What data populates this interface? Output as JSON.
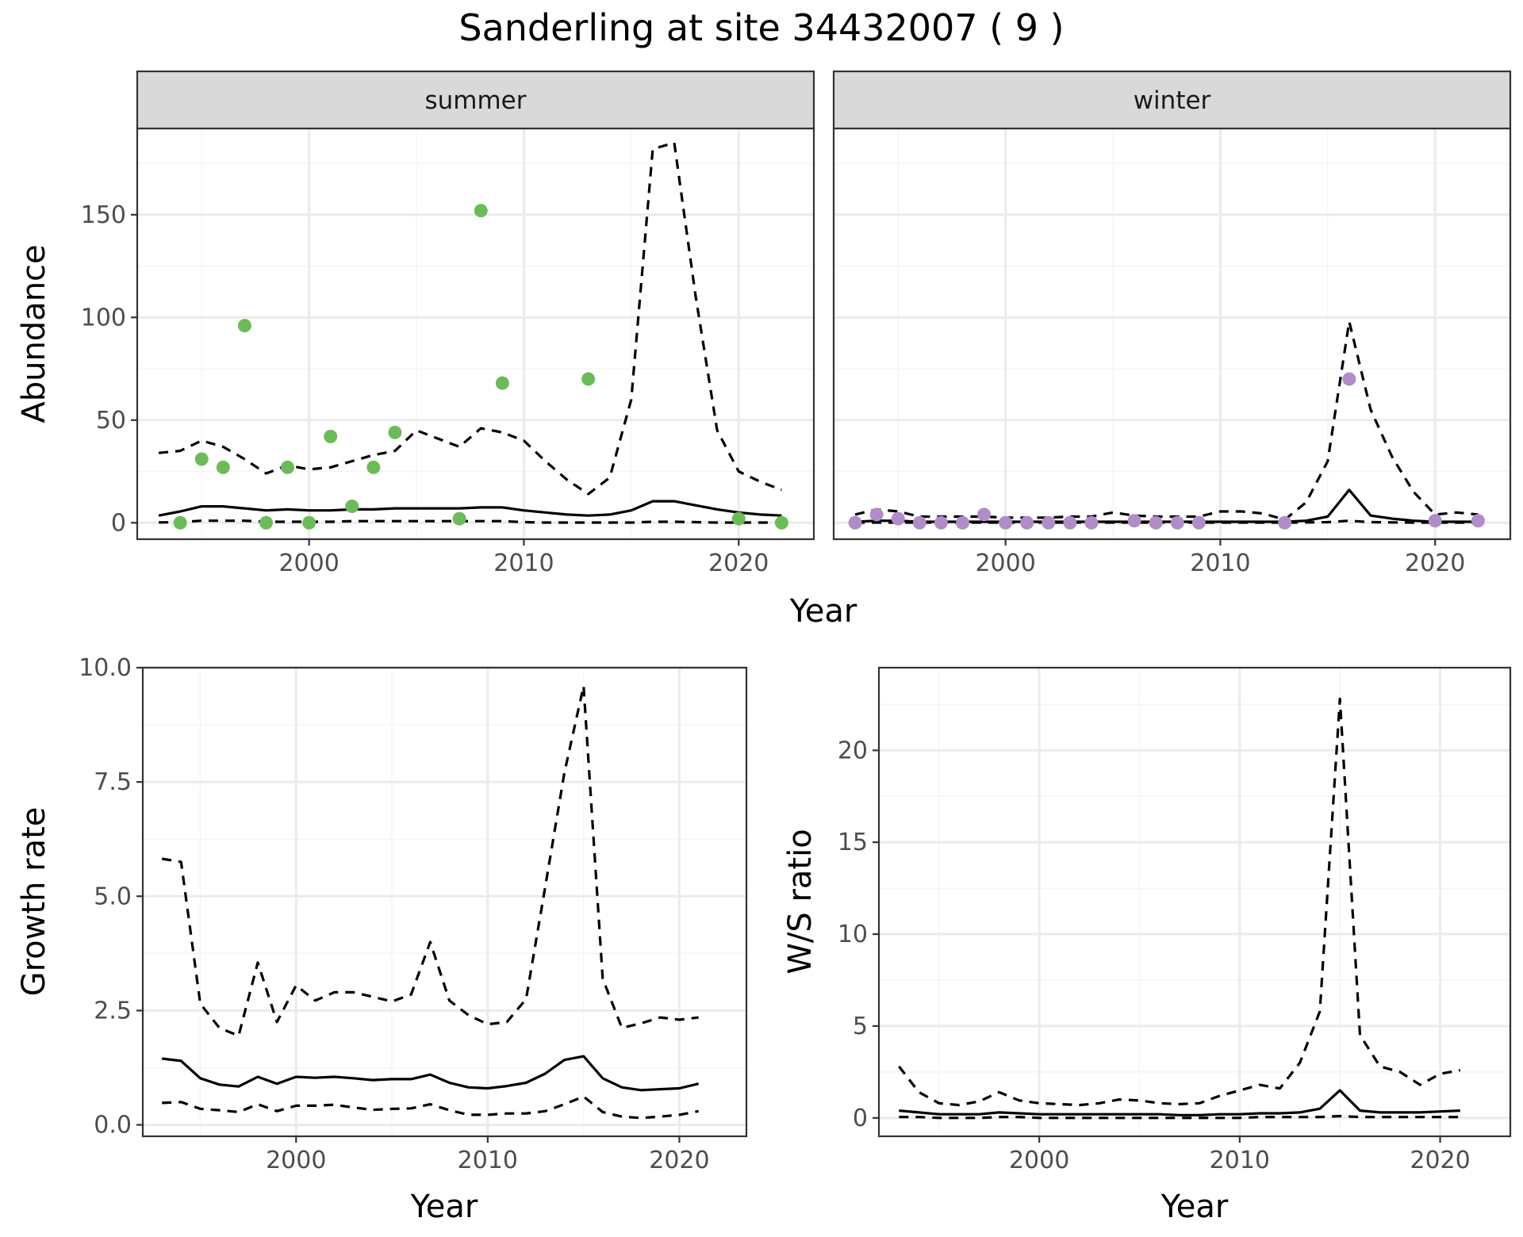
{
  "title": "Sanderling at site 34432007 ( 9 )",
  "colors": {
    "summer": "#6ABD56",
    "winter": "#B08CC8",
    "strip_bg": "#D9D9D9",
    "grid_major": "#EBEBEB",
    "grid_minor": "#F5F5F5",
    "line": "#000000"
  },
  "chart_data": [
    {
      "type": "scatter",
      "facet": "summer",
      "xlabel": "Year",
      "ylabel": "Abundance",
      "xlim": [
        1992,
        2023.5
      ],
      "ylim": [
        -8,
        192
      ],
      "xticks": [
        2000,
        2010,
        2020
      ],
      "yticks": [
        0,
        50,
        100,
        150
      ],
      "points": {
        "x": [
          1994,
          1995,
          1996,
          1997,
          1998,
          1999,
          2000,
          2001,
          2002,
          2003,
          2004,
          2007,
          2008,
          2009,
          2013,
          2020,
          2022
        ],
        "y": [
          0,
          31,
          27,
          96,
          0,
          27,
          0,
          42,
          8,
          27,
          44,
          2,
          152,
          68,
          70,
          2,
          0
        ]
      },
      "lines": [
        {
          "role": "median",
          "style": "solid",
          "x": [
            1993,
            1994,
            1995,
            1996,
            1997,
            1998,
            1999,
            2000,
            2001,
            2002,
            2003,
            2004,
            2005,
            2006,
            2007,
            2008,
            2009,
            2010,
            2011,
            2012,
            2013,
            2014,
            2015,
            2016,
            2017,
            2018,
            2019,
            2020,
            2021,
            2022
          ],
          "y": [
            3.5,
            5.5,
            8,
            8,
            7,
            6,
            6.5,
            6,
            6,
            6.5,
            6.5,
            7,
            7,
            7,
            7,
            7.5,
            7.5,
            6,
            5,
            4,
            3.5,
            4,
            6,
            10.5,
            10.5,
            8.5,
            6.5,
            5,
            4,
            3.5
          ]
        },
        {
          "role": "upper",
          "style": "dashed",
          "x": [
            1993,
            1994,
            1995,
            1996,
            1997,
            1998,
            1999,
            2000,
            2001,
            2002,
            2003,
            2004,
            2005,
            2006,
            2007,
            2008,
            2009,
            2010,
            2011,
            2012,
            2013,
            2014,
            2015,
            2016,
            2017,
            2018,
            2019,
            2020,
            2021,
            2022
          ],
          "y": [
            34,
            35,
            40,
            37,
            31,
            24,
            28,
            26,
            27,
            30,
            33,
            35,
            45,
            41,
            37,
            46,
            44,
            40,
            30,
            21,
            14,
            22,
            60,
            182,
            185,
            110,
            45,
            25,
            20,
            16
          ]
        },
        {
          "role": "lower",
          "style": "dashed",
          "x": [
            1993,
            1994,
            1995,
            1996,
            1997,
            1998,
            1999,
            2000,
            2001,
            2002,
            2003,
            2004,
            2005,
            2006,
            2007,
            2008,
            2009,
            2010,
            2011,
            2012,
            2013,
            2014,
            2015,
            2016,
            2017,
            2018,
            2019,
            2020,
            2021,
            2022
          ],
          "y": [
            0.2,
            0.3,
            1,
            1,
            1,
            0.5,
            0.5,
            0.5,
            0.5,
            0.8,
            0.8,
            0.8,
            0.8,
            0.8,
            0.8,
            0.8,
            0.8,
            0.3,
            0.1,
            0.1,
            0.1,
            0.1,
            0.1,
            0.5,
            0.5,
            0.3,
            0.1,
            0.1,
            0.1,
            0.1
          ]
        }
      ]
    },
    {
      "type": "scatter",
      "facet": "winter",
      "xlabel": "Year",
      "ylabel": "Abundance",
      "xlim": [
        1992,
        2023.5
      ],
      "ylim": [
        -8,
        192
      ],
      "xticks": [
        2000,
        2010,
        2020
      ],
      "yticks": [
        0,
        50,
        100,
        150
      ],
      "points": {
        "x": [
          1993,
          1994,
          1995,
          1996,
          1997,
          1998,
          1999,
          2000,
          2001,
          2002,
          2003,
          2004,
          2006,
          2007,
          2008,
          2009,
          2013,
          2016,
          2020,
          2022
        ],
        "y": [
          0,
          4,
          2,
          0,
          0,
          0,
          4,
          0,
          0,
          0,
          0,
          0,
          1,
          0,
          0,
          0,
          0,
          70,
          1,
          1
        ]
      },
      "lines": [
        {
          "role": "median",
          "style": "solid",
          "x": [
            1993,
            1994,
            1995,
            1996,
            1997,
            1998,
            1999,
            2000,
            2001,
            2002,
            2003,
            2004,
            2005,
            2006,
            2007,
            2008,
            2009,
            2010,
            2011,
            2012,
            2013,
            2014,
            2015,
            2016,
            2017,
            2018,
            2019,
            2020,
            2021,
            2022
          ],
          "y": [
            0.5,
            1,
            1,
            0.5,
            0.5,
            0.5,
            0.5,
            0.5,
            0.5,
            0.5,
            0.5,
            0.5,
            0.5,
            0.5,
            0.5,
            0.5,
            0.5,
            0.5,
            0.5,
            0.5,
            0.5,
            1,
            3,
            16,
            3.5,
            2,
            1,
            0.5,
            0.5,
            0.5
          ]
        },
        {
          "role": "upper",
          "style": "dashed",
          "x": [
            1993,
            1994,
            1995,
            1996,
            1997,
            1998,
            1999,
            2000,
            2001,
            2002,
            2003,
            2004,
            2005,
            2006,
            2007,
            2008,
            2009,
            2010,
            2011,
            2012,
            2013,
            2014,
            2015,
            2016,
            2017,
            2018,
            2019,
            2020,
            2021,
            2022
          ],
          "y": [
            4,
            6.5,
            5.5,
            3,
            3,
            3,
            3,
            2.5,
            2.5,
            2.5,
            3,
            3,
            5,
            3.5,
            3,
            3,
            3,
            5.5,
            5.5,
            4.5,
            1.5,
            10,
            30,
            98,
            55,
            32,
            15,
            4,
            5,
            4
          ]
        },
        {
          "role": "lower",
          "style": "dashed",
          "x": [
            1993,
            1994,
            1995,
            1996,
            1997,
            1998,
            1999,
            2000,
            2001,
            2002,
            2003,
            2004,
            2005,
            2006,
            2007,
            2008,
            2009,
            2010,
            2011,
            2012,
            2013,
            2014,
            2015,
            2016,
            2017,
            2018,
            2019,
            2020,
            2021,
            2022
          ],
          "y": [
            0.1,
            0.1,
            0.1,
            0.1,
            0.1,
            0.1,
            0.1,
            0.1,
            0.1,
            0.1,
            0.1,
            0.1,
            0.1,
            0.1,
            0.1,
            0.1,
            0.1,
            0.1,
            0.1,
            0.1,
            0.1,
            0.2,
            0.3,
            1,
            0.3,
            0.2,
            0.1,
            0.1,
            0.1,
            0.1
          ]
        }
      ]
    },
    {
      "type": "line",
      "facet": "",
      "xlabel": "Year",
      "ylabel": "Growth rate",
      "xlim": [
        1992,
        2023.5
      ],
      "ylim": [
        -0.25,
        10
      ],
      "xticks": [
        2000,
        2010,
        2020
      ],
      "yticks": [
        0.0,
        2.5,
        5.0,
        7.5,
        10.0
      ],
      "ytick_labels": [
        "0.0",
        "2.5",
        "5.0",
        "7.5",
        "10.0"
      ],
      "lines": [
        {
          "role": "median",
          "style": "solid",
          "x": [
            1993,
            1994,
            1995,
            1996,
            1997,
            1998,
            1999,
            2000,
            2001,
            2002,
            2003,
            2004,
            2005,
            2006,
            2007,
            2008,
            2009,
            2010,
            2011,
            2012,
            2013,
            2014,
            2015,
            2016,
            2017,
            2018,
            2019,
            2020,
            2021
          ],
          "y": [
            1.45,
            1.4,
            1.02,
            0.88,
            0.84,
            1.05,
            0.9,
            1.05,
            1.03,
            1.05,
            1.02,
            0.98,
            1.0,
            1.0,
            1.1,
            0.92,
            0.82,
            0.8,
            0.85,
            0.92,
            1.12,
            1.42,
            1.5,
            1.02,
            0.82,
            0.76,
            0.78,
            0.8,
            0.9
          ]
        },
        {
          "role": "upper",
          "style": "dashed",
          "x": [
            1993,
            1994,
            1995,
            1996,
            1997,
            1998,
            1999,
            2000,
            2001,
            2002,
            2003,
            2004,
            2005,
            2006,
            2007,
            2008,
            2009,
            2010,
            2011,
            2012,
            2013,
            2014,
            2015,
            2016,
            2017,
            2018,
            2019,
            2020,
            2021
          ],
          "y": [
            5.82,
            5.75,
            2.65,
            2.12,
            1.95,
            3.55,
            2.25,
            3.05,
            2.72,
            2.9,
            2.9,
            2.8,
            2.7,
            2.85,
            4.0,
            2.72,
            2.4,
            2.2,
            2.25,
            2.75,
            5.2,
            7.7,
            9.6,
            3.2,
            2.12,
            2.22,
            2.35,
            2.3,
            2.35
          ]
        },
        {
          "role": "lower",
          "style": "dashed",
          "x": [
            1993,
            1994,
            1995,
            1996,
            1997,
            1998,
            1999,
            2000,
            2001,
            2002,
            2003,
            2004,
            2005,
            2006,
            2007,
            2008,
            2009,
            2010,
            2011,
            2012,
            2013,
            2014,
            2015,
            2016,
            2017,
            2018,
            2019,
            2020,
            2021
          ],
          "y": [
            0.48,
            0.5,
            0.35,
            0.32,
            0.28,
            0.45,
            0.3,
            0.42,
            0.42,
            0.44,
            0.38,
            0.33,
            0.35,
            0.36,
            0.45,
            0.32,
            0.22,
            0.22,
            0.25,
            0.25,
            0.3,
            0.45,
            0.62,
            0.28,
            0.18,
            0.15,
            0.18,
            0.22,
            0.3
          ]
        }
      ]
    },
    {
      "type": "line",
      "facet": "",
      "xlabel": "Year",
      "ylabel": "W/S ratio",
      "xlim": [
        1992,
        2023.5
      ],
      "ylim": [
        -1,
        24.5
      ],
      "xticks": [
        2000,
        2010,
        2020
      ],
      "yticks": [
        0,
        5,
        10,
        15,
        20
      ],
      "lines": [
        {
          "role": "median",
          "style": "solid",
          "x": [
            1993,
            1994,
            1995,
            1996,
            1997,
            1998,
            1999,
            2000,
            2001,
            2002,
            2003,
            2004,
            2005,
            2006,
            2007,
            2008,
            2009,
            2010,
            2011,
            2012,
            2013,
            2014,
            2015,
            2016,
            2017,
            2018,
            2019,
            2020,
            2021
          ],
          "y": [
            0.4,
            0.3,
            0.2,
            0.2,
            0.2,
            0.3,
            0.25,
            0.2,
            0.2,
            0.2,
            0.2,
            0.2,
            0.2,
            0.2,
            0.15,
            0.15,
            0.2,
            0.2,
            0.25,
            0.25,
            0.3,
            0.5,
            1.5,
            0.4,
            0.3,
            0.3,
            0.3,
            0.35,
            0.4
          ]
        },
        {
          "role": "upper",
          "style": "dashed",
          "x": [
            1993,
            1994,
            1995,
            1996,
            1997,
            1998,
            1999,
            2000,
            2001,
            2002,
            2003,
            2004,
            2005,
            2006,
            2007,
            2008,
            2009,
            2010,
            2011,
            2012,
            2013,
            2014,
            2015,
            2016,
            2017,
            2018,
            2019,
            2020,
            2021
          ],
          "y": [
            2.8,
            1.4,
            0.8,
            0.7,
            0.9,
            1.4,
            0.95,
            0.8,
            0.75,
            0.7,
            0.8,
            1.0,
            0.95,
            0.8,
            0.75,
            0.8,
            1.2,
            1.5,
            1.8,
            1.6,
            3.0,
            5.8,
            22.8,
            4.5,
            2.8,
            2.5,
            1.8,
            2.4,
            2.6
          ]
        },
        {
          "role": "lower",
          "style": "dashed",
          "x": [
            1993,
            1994,
            1995,
            1996,
            1997,
            1998,
            1999,
            2000,
            2001,
            2002,
            2003,
            2004,
            2005,
            2006,
            2007,
            2008,
            2009,
            2010,
            2011,
            2012,
            2013,
            2014,
            2015,
            2016,
            2017,
            2018,
            2019,
            2020,
            2021
          ],
          "y": [
            0.05,
            0.05,
            0.0,
            0.0,
            0.0,
            0.05,
            0.05,
            0.0,
            0.0,
            0.0,
            0.0,
            0.0,
            0.0,
            0.0,
            0.0,
            0.0,
            0.0,
            0.0,
            0.05,
            0.05,
            0.05,
            0.05,
            0.1,
            0.05,
            0.05,
            0.05,
            0.05,
            0.05,
            0.05
          ]
        }
      ]
    }
  ]
}
